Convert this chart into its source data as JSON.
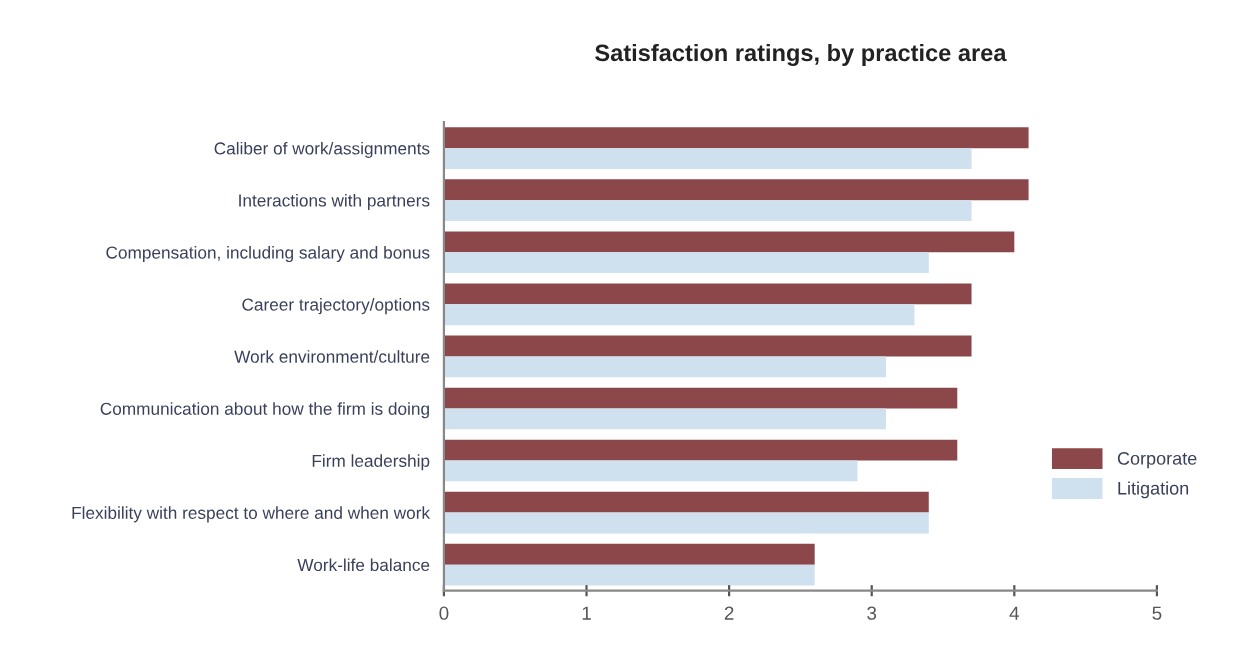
{
  "chart_data": {
    "type": "bar",
    "orientation": "horizontal",
    "title": "Satisfaction ratings, by practice area",
    "categories": [
      "Caliber of work/assignments",
      "Interactions with partners",
      "Compensation, including salary and bonus",
      "Career trajectory/options",
      "Work environment/culture",
      "Communication about how the firm is doing",
      "Firm leadership",
      "Flexibility with respect to where and when work",
      "Work-life balance"
    ],
    "series": [
      {
        "name": "Corporate",
        "color": "#8b474a",
        "values": [
          4.1,
          4.1,
          4.0,
          3.7,
          3.7,
          3.6,
          3.6,
          3.4,
          2.6
        ]
      },
      {
        "name": "Litigation",
        "color": "#cfe0ee",
        "values": [
          3.7,
          3.7,
          3.4,
          3.3,
          3.1,
          3.1,
          2.9,
          3.4,
          2.6
        ]
      }
    ],
    "xlim": [
      0,
      5
    ],
    "xticks": [
      0,
      1,
      2,
      3,
      4,
      5
    ],
    "grid": false,
    "legend": "right"
  }
}
